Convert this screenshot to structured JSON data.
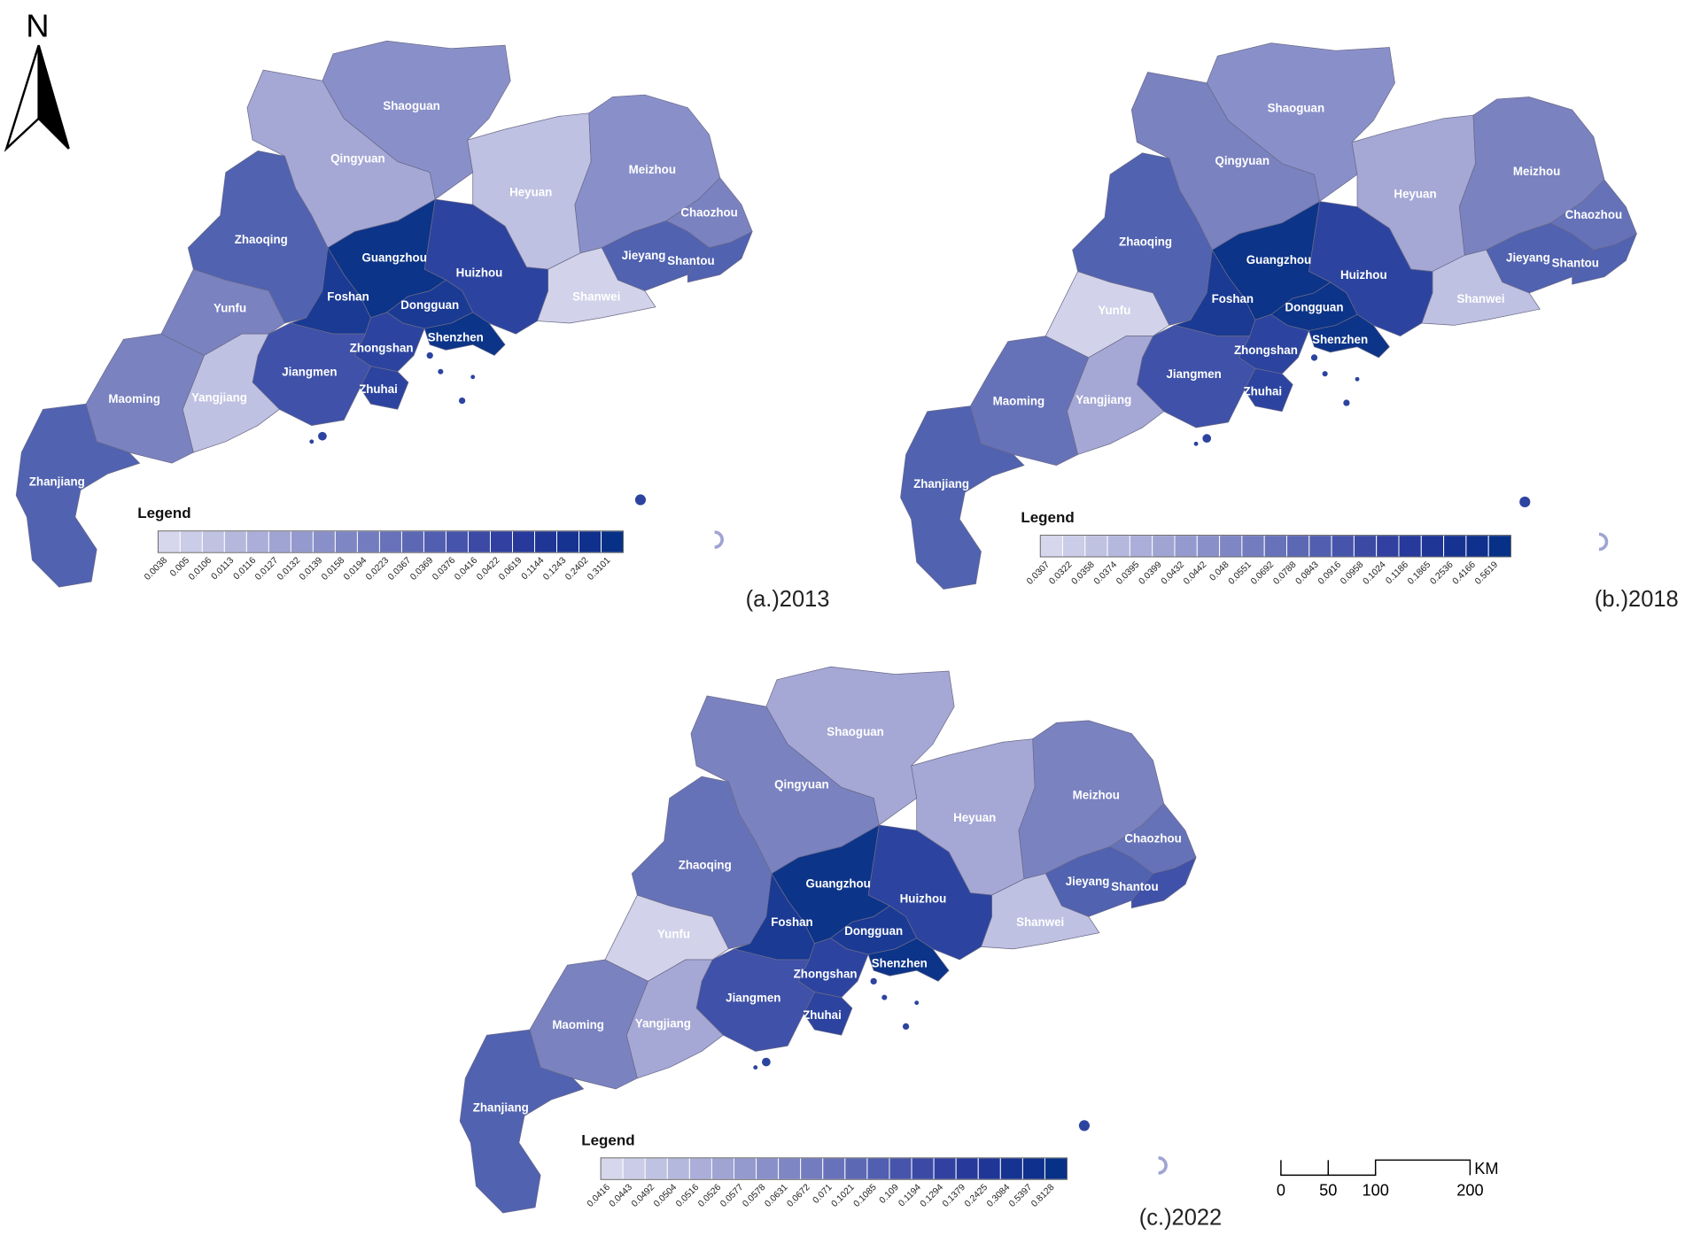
{
  "north": "N",
  "legend_colors": [
    "#d6d6ec",
    "#cbcce7",
    "#c0c2e2",
    "#b5b8dd",
    "#aaaed8",
    "#9fa4d3",
    "#949ace",
    "#8990c9",
    "#7e86c4",
    "#737cbf",
    "#6872ba",
    "#5d68b5",
    "#525eb0",
    "#4754ab",
    "#3c4aa6",
    "#3140a1",
    "#27399b",
    "#1f3696",
    "#173391",
    "#0f308c",
    "#073087"
  ],
  "maps": [
    {
      "caption": "(a.)2013",
      "legend": {
        "title": "Legend",
        "breaks": [
          0.0038,
          0.005,
          0.0106,
          0.0113,
          0.0116,
          0.0127,
          0.0132,
          0.0139,
          0.0158,
          0.0194,
          0.0223,
          0.0367,
          0.0369,
          0.0376,
          0.0416,
          0.0422,
          0.0619,
          0.1144,
          0.1243,
          0.2402,
          0.3101
        ]
      },
      "cities": [
        {
          "name": "Shaoguan",
          "color": "#8990c9"
        },
        {
          "name": "Qingyuan",
          "color": "#a5a8d5"
        },
        {
          "name": "Heyuan",
          "color": "#bfc1e2"
        },
        {
          "name": "Meizhou",
          "color": "#8990c9"
        },
        {
          "name": "Chaozhou",
          "color": "#7a82c0"
        },
        {
          "name": "Jieyang",
          "color": "#5062b0"
        },
        {
          "name": "Shantou",
          "color": "#5062b0"
        },
        {
          "name": "Shanwei",
          "color": "#d2d2ea"
        },
        {
          "name": "Huizhou",
          "color": "#2c449f"
        },
        {
          "name": "Guangzhou",
          "color": "#0c3488"
        },
        {
          "name": "Zhaoqing",
          "color": "#5062b0"
        },
        {
          "name": "Foshan",
          "color": "#1a3a94"
        },
        {
          "name": "Dongguan",
          "color": "#1a3a94"
        },
        {
          "name": "Shenzhen",
          "color": "#0c3488"
        },
        {
          "name": "Zhongshan",
          "color": "#2c449f"
        },
        {
          "name": "Zhuhai",
          "color": "#2c449f"
        },
        {
          "name": "Jiangmen",
          "color": "#3f51a8"
        },
        {
          "name": "Yunfu",
          "color": "#7a82c0"
        },
        {
          "name": "Yangjiang",
          "color": "#bfc1e2"
        },
        {
          "name": "Maoming",
          "color": "#7a82c0"
        },
        {
          "name": "Zhanjiang",
          "color": "#5062b0"
        }
      ]
    },
    {
      "caption": "(b.)2018",
      "legend": {
        "title": "Legend",
        "breaks": [
          0.0307,
          0.0322,
          0.0358,
          0.0374,
          0.0395,
          0.0399,
          0.0432,
          0.0442,
          0.048,
          0.0551,
          0.0692,
          0.0788,
          0.0843,
          0.0916,
          0.0958,
          0.1024,
          0.1186,
          0.1865,
          0.2536,
          0.4166,
          0.5619
        ]
      },
      "cities": [
        {
          "name": "Shaoguan",
          "color": "#8990c9"
        },
        {
          "name": "Qingyuan",
          "color": "#7a82c0"
        },
        {
          "name": "Heyuan",
          "color": "#a5a8d5"
        },
        {
          "name": "Meizhou",
          "color": "#7a82c0"
        },
        {
          "name": "Chaozhou",
          "color": "#6672b8"
        },
        {
          "name": "Jieyang",
          "color": "#5062b0"
        },
        {
          "name": "Shantou",
          "color": "#5062b0"
        },
        {
          "name": "Shanwei",
          "color": "#bfc1e2"
        },
        {
          "name": "Huizhou",
          "color": "#2c449f"
        },
        {
          "name": "Guangzhou",
          "color": "#0c3488"
        },
        {
          "name": "Zhaoqing",
          "color": "#5062b0"
        },
        {
          "name": "Foshan",
          "color": "#1a3a94"
        },
        {
          "name": "Dongguan",
          "color": "#0c3488"
        },
        {
          "name": "Shenzhen",
          "color": "#0c3488"
        },
        {
          "name": "Zhongshan",
          "color": "#2c449f"
        },
        {
          "name": "Zhuhai",
          "color": "#2c449f"
        },
        {
          "name": "Jiangmen",
          "color": "#3f51a8"
        },
        {
          "name": "Yunfu",
          "color": "#d2d2ea"
        },
        {
          "name": "Yangjiang",
          "color": "#a5a8d5"
        },
        {
          "name": "Maoming",
          "color": "#6672b8"
        },
        {
          "name": "Zhanjiang",
          "color": "#5062b0"
        }
      ]
    },
    {
      "caption": "(c.)2022",
      "legend": {
        "title": "Legend",
        "breaks": [
          0.0416,
          0.0443,
          0.0492,
          0.0504,
          0.0516,
          0.0526,
          0.0577,
          0.0578,
          0.0631,
          0.0672,
          0.071,
          0.1021,
          0.1085,
          0.109,
          0.1194,
          0.1294,
          0.1379,
          0.2425,
          0.3084,
          0.5397,
          0.8128
        ]
      },
      "cities": [
        {
          "name": "Shaoguan",
          "color": "#a5a8d5"
        },
        {
          "name": "Qingyuan",
          "color": "#7a82c0"
        },
        {
          "name": "Heyuan",
          "color": "#a5a8d5"
        },
        {
          "name": "Meizhou",
          "color": "#7a82c0"
        },
        {
          "name": "Chaozhou",
          "color": "#6672b8"
        },
        {
          "name": "Jieyang",
          "color": "#5062b0"
        },
        {
          "name": "Shantou",
          "color": "#3f51a8"
        },
        {
          "name": "Shanwei",
          "color": "#bfc1e2"
        },
        {
          "name": "Huizhou",
          "color": "#2c449f"
        },
        {
          "name": "Guangzhou",
          "color": "#0c3488"
        },
        {
          "name": "Zhaoqing",
          "color": "#6672b8"
        },
        {
          "name": "Foshan",
          "color": "#1a3a94"
        },
        {
          "name": "Dongguan",
          "color": "#1a3a94"
        },
        {
          "name": "Shenzhen",
          "color": "#0c3488"
        },
        {
          "name": "Zhongshan",
          "color": "#2c449f"
        },
        {
          "name": "Zhuhai",
          "color": "#2c449f"
        },
        {
          "name": "Jiangmen",
          "color": "#3f51a8"
        },
        {
          "name": "Yunfu",
          "color": "#d2d2ea"
        },
        {
          "name": "Yangjiang",
          "color": "#a5a8d5"
        },
        {
          "name": "Maoming",
          "color": "#7a82c0"
        },
        {
          "name": "Zhanjiang",
          "color": "#5062b0"
        }
      ]
    }
  ],
  "scale_bar": {
    "ticks": [
      0,
      50,
      100,
      200
    ],
    "unit": "KM"
  }
}
